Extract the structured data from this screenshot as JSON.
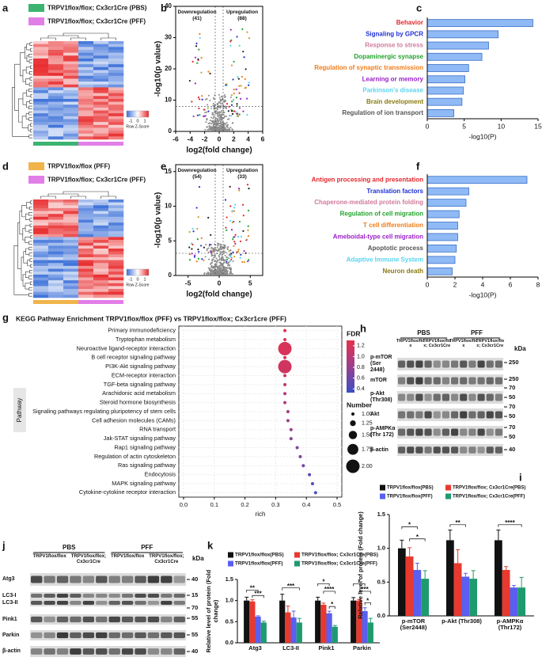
{
  "panel_labels": [
    "a",
    "b",
    "c",
    "d",
    "e",
    "f",
    "g",
    "h",
    "i",
    "j",
    "k"
  ],
  "heatmaps": [
    {
      "legend": [
        {
          "name": "TRPV1flox/flox; Cx3cr1Cre (PBS)",
          "color": "#3cb371"
        },
        {
          "name": "TRPV1flox/flox; Cx3cr1Cre (PFF)",
          "color": "#e27ee8"
        }
      ],
      "scale": [
        -1,
        0,
        1
      ],
      "scale_title": "Row Z-Score"
    },
    {
      "legend": [
        {
          "name": "TRPV1flox/flox (PFF)",
          "color": "#f0b44a"
        },
        {
          "name": "TRPV1flox/flox; Cx3cr1Cre (PFF)",
          "color": "#e27ee8"
        }
      ],
      "scale": [
        -1,
        0,
        1
      ],
      "scale_title": "Row Z-Score"
    }
  ],
  "chart_data": [
    {
      "type": "volcano",
      "xlabel": "log2(fold change)",
      "ylabel": "-log10(p value)",
      "down": "Downregulation (41)",
      "up": "Upregulation (88)",
      "xlim": [
        -6,
        6
      ],
      "xticks": [
        -6,
        -4,
        -2,
        0,
        2,
        4,
        6
      ],
      "ylim": [
        0,
        40
      ],
      "yticks": [
        0,
        10,
        20,
        30,
        40
      ]
    },
    {
      "type": "barh",
      "categories": [
        "Behavior",
        "Signaling by GPCR",
        "Response to stress",
        "Dopaminergic synapse",
        "Regulation of synaptic transmission",
        "Learning or memory",
        "Parkinson's disease",
        "Brain development",
        "Regulation of ion transport"
      ],
      "label_colors": [
        "#e3262b",
        "#1f2fd6",
        "#d07a9c",
        "#21a32b",
        "#f07c1a",
        "#9b1fc8",
        "#57d4f0",
        "#8a7a10",
        "#555555"
      ],
      "values": [
        14.3,
        9.6,
        8.3,
        7.4,
        5.6,
        5.1,
        4.9,
        4.7,
        3.6
      ],
      "color": "#8fbaf5",
      "edge_color": "#3b6fc9",
      "xlim": [
        0,
        15
      ],
      "xticks": [
        0,
        5,
        10,
        15
      ],
      "xlabel": "-log10(P)"
    },
    {
      "type": "volcano",
      "xlabel": "log2(fold change)",
      "ylabel": "-log10(p value)",
      "down": "Downregulation (54)",
      "up": "Upregulation (33)",
      "xlim": [
        -7,
        7
      ],
      "xticks": [
        -5,
        0,
        5
      ],
      "ylim": [
        0,
        16
      ],
      "yticks": [
        0,
        5,
        10,
        15
      ]
    },
    {
      "type": "barh",
      "categories": [
        "Antigen processing and presentation",
        "Translation factors",
        "Chaperone-mediated protein folding",
        "Regulation of cell migration",
        "T cell differentiation",
        "Ameboidal-type cell migration",
        "Apoptotic process",
        "Adaptive Immune System",
        "Neuron death"
      ],
      "label_colors": [
        "#e3262b",
        "#1f2fd6",
        "#d07a9c",
        "#21a32b",
        "#f07c1a",
        "#9b1fc8",
        "#555555",
        "#57d4f0",
        "#8a7a10"
      ],
      "values": [
        7.2,
        3.0,
        2.8,
        2.3,
        2.2,
        2.2,
        2.1,
        2.0,
        1.8
      ],
      "color": "#8fbaf5",
      "edge_color": "#3b6fc9",
      "xlim": [
        0,
        8
      ],
      "xticks": [
        0,
        2,
        4,
        6,
        8
      ],
      "xlabel": "-log10(P)"
    },
    {
      "type": "bubble",
      "title": "KEGG Pathway Enrichment TRPV1flox/flox (PFF) vs TRPV1flox/flox; Cx3cr1cre (PFF)",
      "ylabel": "Pathway",
      "xlabel": "rich",
      "categories": [
        "Primary immunodeficiency",
        "Tryptophan metabolism",
        "Neuroactive ligand-receptor interaction",
        "B cell receptor signaling pathway",
        "PI3K-Akt signaling pathway",
        "ECM-receptor interaction",
        "TGF-beta signaling pathway",
        "Arachidonic acid metabolism",
        "Steroid hormone biosynthesis",
        "Signaling pathways regulating pluripotency of stem cells",
        "Cell adhesion molecules (CAMs)",
        "RNA transport",
        "Jak-STAT signaling pathway",
        "Rap1 signaling pathway",
        "Regulation of actin cytoskeleton",
        "Ras signaling pathway",
        "Endocytosis",
        "MAPK signaling pathway",
        "Cytokine-cytokine receptor interaction"
      ],
      "values": [
        0.33,
        0.33,
        0.33,
        0.33,
        0.33,
        0.33,
        0.33,
        0.33,
        0.33,
        0.34,
        0.34,
        0.35,
        0.35,
        0.37,
        0.38,
        0.39,
        0.41,
        0.42,
        0.43
      ],
      "number": [
        1,
        1,
        2,
        1,
        2,
        1,
        1,
        1,
        1,
        1,
        1,
        1,
        1,
        1,
        1,
        1,
        1,
        1,
        1
      ],
      "fdr": [
        1.25,
        1.25,
        1.2,
        1.2,
        1.15,
        1.1,
        1.05,
        1.0,
        0.95,
        0.9,
        0.85,
        0.8,
        0.75,
        0.7,
        0.65,
        0.6,
        0.5,
        0.45,
        0.4
      ],
      "xlim": [
        0,
        0.5
      ],
      "xticks": [
        {
          "value": 0,
          "label": "0.0"
        },
        0.1,
        0.2,
        0.3,
        0.4,
        0.5
      ],
      "fdr_title": "FDR",
      "fdr_lim": [
        0.33,
        1.3
      ],
      "fdr_ticks": [
        1.2,
        {
          "value": 1,
          "label": "1.0"
        },
        0.8,
        0.6,
        0.4
      ],
      "number_title": "Number",
      "number_ticks": [
        {
          "value": 1,
          "label": "1.00"
        },
        1.25,
        {
          "value": 1.5,
          "label": "1.50"
        },
        1.75,
        {
          "value": 2,
          "label": "2.00"
        }
      ]
    },
    {
      "type": "grouped_bar",
      "ylabel": "Relative level of protein (Fold change)",
      "categories": [
        "p-mTOR (Ser2448)",
        "p-Akt (Thr308)",
        "p-AMPKα (Thr172)"
      ],
      "series": [
        {
          "name": "TRPV1flox/flox(PBS)",
          "color": "#111111",
          "values": [
            1.0,
            1.12,
            1.12
          ],
          "errors": [
            0.12,
            0.15,
            0.15
          ]
        },
        {
          "name": "TRPV1flox/flox; Cx3cr1Cre(PBS)",
          "color": "#e8392f",
          "values": [
            0.88,
            0.78,
            0.68
          ],
          "errors": [
            0.13,
            0.2,
            0.05
          ]
        },
        {
          "name": "TRPV1flox/flox(PFF)",
          "color": "#5a5ff0",
          "values": [
            0.68,
            0.58,
            0.42
          ],
          "errors": [
            0.1,
            0.05,
            0.03
          ]
        },
        {
          "name": "TRPV1flox/flox; Cx3cr1Cre(PFF)",
          "color": "#1e9b6e",
          "values": [
            0.55,
            0.55,
            0.42
          ],
          "errors": [
            0.12,
            0.12,
            0.15
          ]
        }
      ],
      "ylim": [
        0,
        1.5
      ],
      "yticks": [
        {
          "value": 0,
          "label": "0.0"
        },
        0.5,
        {
          "value": 1,
          "label": "1.0"
        },
        1.5
      ],
      "annotations": [
        "*",
        "*",
        "**",
        "****"
      ]
    },
    {
      "type": "grouped_bar",
      "ylabel": "Relative level of protein (Fold change)",
      "categories": [
        "Atg3",
        "LC3-II",
        "Pink1",
        "Parkin"
      ],
      "series": [
        {
          "name": "TRPV1flox/flox(PBS)",
          "color": "#111111",
          "values": [
            1.0,
            1.0,
            1.0,
            1.0
          ],
          "errors": [
            0.08,
            0.15,
            0.08,
            0.07
          ]
        },
        {
          "name": "TRPV1flox/flox; Cx3cr1Cre(PBS)",
          "color": "#e8392f",
          "values": [
            0.98,
            0.72,
            0.9,
            1.0
          ],
          "errors": [
            0.04,
            0.15,
            0.04,
            0.03
          ]
        },
        {
          "name": "TRPV1flox/flox(PFF)",
          "color": "#5a5ff0",
          "values": [
            0.62,
            0.6,
            0.7,
            0.75
          ],
          "errors": [
            0.02,
            0.15,
            0.05,
            0.08
          ]
        },
        {
          "name": "TRPV1flox/flox; Cx3cr1Cre(PFF)",
          "color": "#1e9b6e",
          "values": [
            0.48,
            0.48,
            0.38,
            0.48
          ],
          "errors": [
            0.03,
            0.1,
            0.03,
            0.1
          ]
        }
      ],
      "ylim": [
        0,
        1.5
      ],
      "yticks": [
        {
          "value": 0,
          "label": "0.0"
        },
        0.5,
        {
          "value": 1,
          "label": "1.0"
        },
        1.5
      ],
      "annotations": [
        "**",
        "***",
        "***",
        "*",
        "****",
        "*",
        "*",
        "***",
        "*"
      ]
    }
  ],
  "blots": [
    {
      "groups": [
        "PBS",
        "PFF"
      ],
      "subgroups": [
        "TRPV1flox/flox",
        "TRPV1flox/flox; Cx3cr1Cre",
        "TRPV1flox/flox",
        "TRPV1flox/flox; Cx3cr1Cre"
      ],
      "unit": "kDa",
      "rows": [
        "p-mTOR (Ser 2448)",
        "mTOR",
        "p-Akt (Thr308)",
        "Akt",
        "p-AMPKα (Thr 172)",
        "β-actin"
      ],
      "markers": [
        250,
        250,
        70,
        50,
        70,
        50,
        70,
        50,
        40
      ]
    },
    {
      "groups": [
        "PBS",
        "PFF"
      ],
      "subgroups": [
        "TRPV1flox/flox",
        "TRPV1flox/flox; Cx3cr1Cre",
        "TRPV1flox/flox",
        "TRPV1flox/flox; Cx3cr1Cre"
      ],
      "unit": "kDa",
      "rows": [
        "Atg3",
        "LC3-I",
        "LC3-II",
        "Pink1",
        "Parkin",
        "β-actin"
      ],
      "markers": [
        40,
        15,
        70,
        55,
        55,
        40
      ]
    }
  ]
}
